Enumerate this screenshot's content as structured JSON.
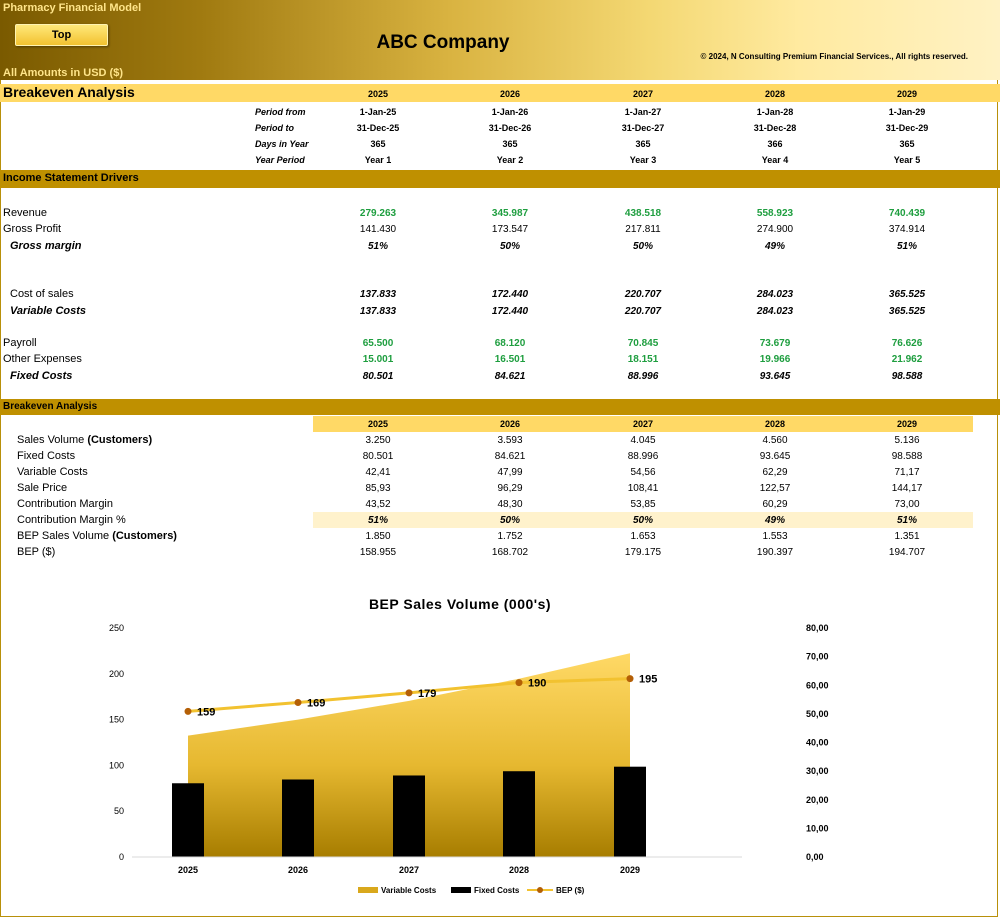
{
  "header": {
    "app_title": "Pharmacy Financial Model",
    "top_button": "Top",
    "company": "ABC Company",
    "copyright": "© 2024, N Consulting Premium Financial Services., All rights reserved.",
    "amounts": "All Amounts in  USD ($)"
  },
  "section_title": "Breakeven Analysis",
  "years": [
    "2025",
    "2026",
    "2027",
    "2028",
    "2029"
  ],
  "periods": {
    "labels": [
      "Period from",
      "Period to",
      "Days in Year",
      "Year Period"
    ],
    "from": [
      "1-Jan-25",
      "1-Jan-26",
      "1-Jan-27",
      "1-Jan-28",
      "1-Jan-29"
    ],
    "to": [
      "31-Dec-25",
      "31-Dec-26",
      "31-Dec-27",
      "31-Dec-28",
      "31-Dec-29"
    ],
    "days": [
      "365",
      "365",
      "365",
      "366",
      "365"
    ],
    "year_period": [
      "Year 1",
      "Year 2",
      "Year 3",
      "Year 4",
      "Year 5"
    ]
  },
  "drivers": {
    "title": "Income Statement Drivers",
    "revenue": {
      "label": "Revenue",
      "values": [
        "279.263",
        "345.987",
        "438.518",
        "558.923",
        "740.439"
      ]
    },
    "gross_profit": {
      "label": "Gross Profit",
      "values": [
        "141.430",
        "173.547",
        "217.811",
        "274.900",
        "374.914"
      ]
    },
    "gross_margin": {
      "label": "Gross margin",
      "values": [
        "51%",
        "50%",
        "50%",
        "49%",
        "51%"
      ]
    },
    "cost_of_sales": {
      "label": "Cost of sales",
      "values": [
        "137.833",
        "172.440",
        "220.707",
        "284.023",
        "365.525"
      ]
    },
    "variable_costs": {
      "label": "Variable Costs",
      "values": [
        "137.833",
        "172.440",
        "220.707",
        "284.023",
        "365.525"
      ]
    },
    "payroll": {
      "label": "Payroll",
      "values": [
        "65.500",
        "68.120",
        "70.845",
        "73.679",
        "76.626"
      ]
    },
    "other_expenses": {
      "label": "Other Expenses",
      "values": [
        "15.001",
        "16.501",
        "18.151",
        "19.966",
        "21.962"
      ]
    },
    "fixed_costs": {
      "label": "Fixed Costs",
      "values": [
        "80.501",
        "84.621",
        "88.996",
        "93.645",
        "98.588"
      ]
    }
  },
  "breakeven": {
    "title": "Breakeven Analysis",
    "sales_volume": {
      "label": "Sales Volume ",
      "label_bold": "(Customers)",
      "values": [
        "3.250",
        "3.593",
        "4.045",
        "4.560",
        "5.136"
      ]
    },
    "fixed_costs": {
      "label": "Fixed Costs",
      "values": [
        "80.501",
        "84.621",
        "88.996",
        "93.645",
        "98.588"
      ]
    },
    "variable_costs": {
      "label": "Variable Costs",
      "values": [
        "42,41",
        "47,99",
        "54,56",
        "62,29",
        "71,17"
      ]
    },
    "sale_price": {
      "label": "Sale Price",
      "values": [
        "85,93",
        "96,29",
        "108,41",
        "122,57",
        "144,17"
      ]
    },
    "contribution_margin": {
      "label": "Contribution Margin",
      "values": [
        "43,52",
        "48,30",
        "53,85",
        "60,29",
        "73,00"
      ]
    },
    "contribution_margin_pct": {
      "label": "Contribution Margin %",
      "values": [
        "51%",
        "50%",
        "50%",
        "49%",
        "51%"
      ]
    },
    "bep_volume": {
      "label": "BEP Sales Volume ",
      "label_bold": "(Customers)",
      "values": [
        "1.850",
        "1.752",
        "1.653",
        "1.553",
        "1.351"
      ]
    },
    "bep_usd": {
      "label": "BEP ($)",
      "values": [
        "158.955",
        "168.702",
        "179.175",
        "190.397",
        "194.707"
      ]
    }
  },
  "chart_data": {
    "type": "bar",
    "title": "BEP Sales Volume  (000's)",
    "categories": [
      "2025",
      "2026",
      "2027",
      "2028",
      "2029"
    ],
    "left_axis": {
      "ylim": [
        0,
        250
      ],
      "ticks": [
        "0",
        "50",
        "100",
        "150",
        "200",
        "250"
      ]
    },
    "right_axis": {
      "ylim": [
        0,
        80
      ],
      "ticks": [
        "0,00",
        "10,00",
        "20,00",
        "30,00",
        "40,00",
        "50,00",
        "60,00",
        "70,00",
        "80,00"
      ]
    },
    "series": [
      {
        "name": "Variable Costs",
        "kind": "area",
        "axis": "right",
        "values": [
          42.41,
          47.99,
          54.56,
          62.29,
          71.17
        ],
        "color": "#ffd966"
      },
      {
        "name": "Fixed Costs",
        "kind": "bar",
        "axis": "left",
        "values": [
          80.501,
          84.621,
          88.996,
          93.645,
          98.588
        ],
        "color": "#000000"
      },
      {
        "name": "BEP ($)",
        "kind": "line",
        "axis": "left",
        "values": [
          158.955,
          168.702,
          179.175,
          190.397,
          194.707
        ],
        "labels": [
          "159",
          "169",
          "179",
          "190",
          "195"
        ],
        "color": "#f2c230"
      }
    ],
    "legend": "bottom"
  }
}
